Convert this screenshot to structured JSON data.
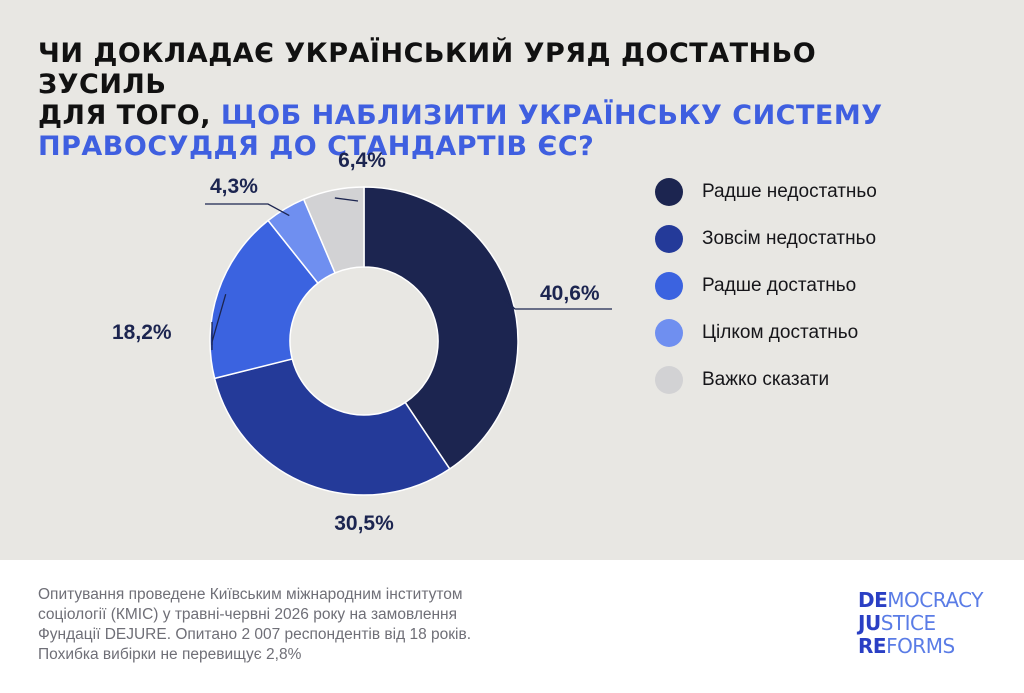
{
  "title": {
    "line1": "ЧИ ДОКЛАДАЄ УКРАЇНСЬКИЙ УРЯД ДОСТАТНЬО ЗУСИЛЬ",
    "line2_prefix": "ДЛЯ ТОГО, ",
    "line2_accent": "ЩОБ НАБЛИЗИТИ УКРАЇНСЬКУ СИСТЕМУ",
    "line3_accent": "ПРАВОСУДДЯ ДО СТАНДАРТІВ ЄС?"
  },
  "colors": {
    "background": "#e8e7e3",
    "accent": "#3f5fe0",
    "series": [
      "#1c2550",
      "#243a99",
      "#3b63e0",
      "#6f8ff0",
      "#d2d2d4"
    ]
  },
  "chart_data": {
    "type": "pie",
    "donut": true,
    "categories": [
      "Радше недостатньо",
      "Зовсім недостатньо",
      "Радше достатньо",
      "Цілком достатньо",
      "Важко сказати"
    ],
    "values": [
      40.6,
      30.5,
      18.2,
      4.3,
      6.4
    ],
    "value_labels": [
      "40,6%",
      "30,5%",
      "18,2%",
      "4,3%",
      "6,4%"
    ],
    "legend_position": "right"
  },
  "legend": [
    {
      "label": "Радше недостатньо"
    },
    {
      "label": "Зовсім недостатньо"
    },
    {
      "label": "Радше достатньо"
    },
    {
      "label": "Цілком достатньо"
    },
    {
      "label": "Важко сказати"
    }
  ],
  "footer": {
    "line1": "Опитування проведене Київським міжнародним інститутом",
    "line2": "соціології (КМІС) у травні-червні 2026 року на замовлення",
    "line3": "Фундації DEJURE. Опитано 2 007 респондентів від 18 років.",
    "line4": "Похибка вибірки не перевищує 2,8%"
  },
  "logo": {
    "row1_bold": "DE",
    "row1_rest": "MOCRACY",
    "row2_bold": "JU",
    "row2_rest": "STICE",
    "row3_bold": "RE",
    "row3_rest": "FORMS"
  }
}
